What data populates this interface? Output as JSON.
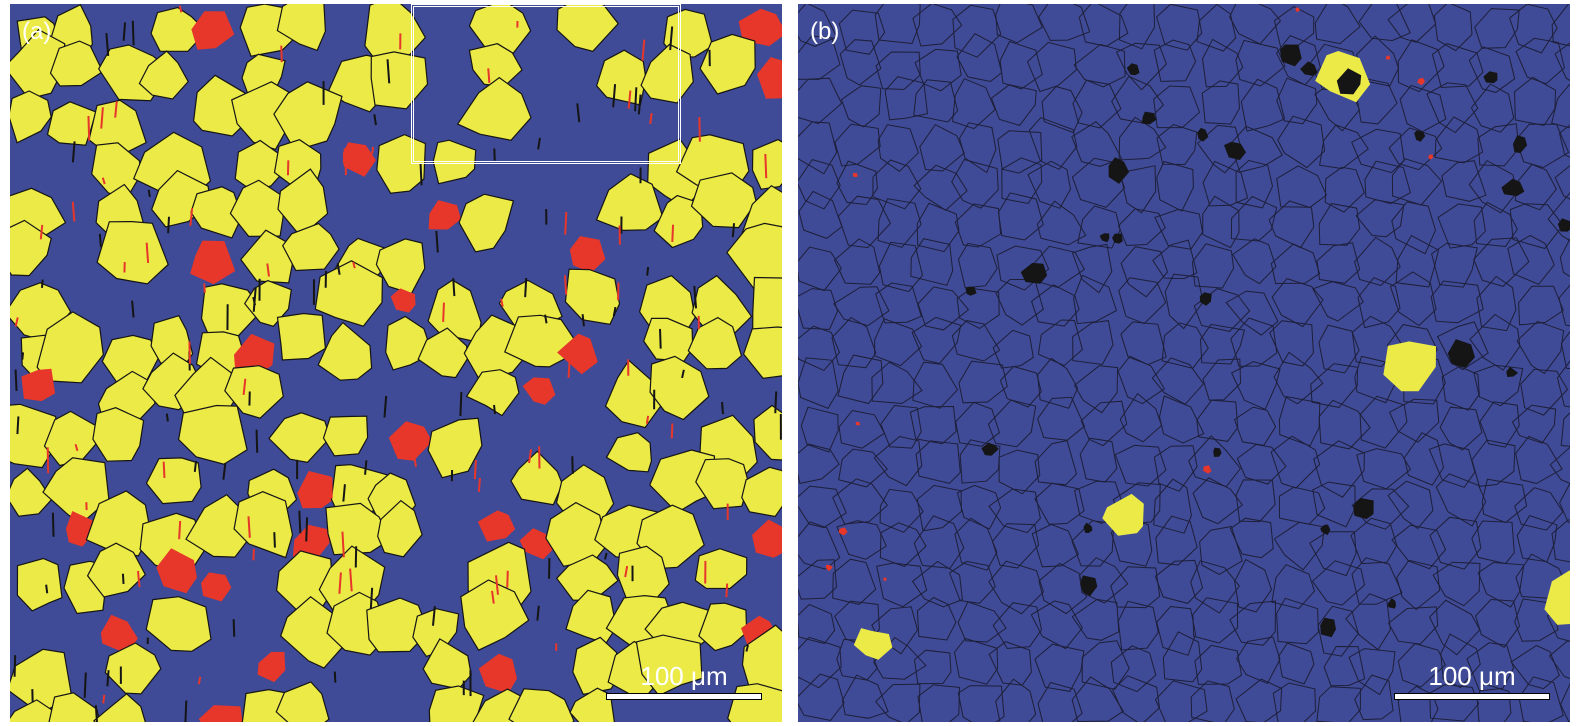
{
  "figure": {
    "panels": [
      {
        "id": "a",
        "label": "(a)",
        "scale_bar": "100 μm",
        "phase_colors": {
          "matrix": "#3f4b96",
          "phase_1": "#ecea47",
          "phase_2": "#e7362a",
          "boundaries": "#151515"
        }
      },
      {
        "id": "b",
        "label": "(b)",
        "scale_bar": "100 μm",
        "phase_colors": {
          "matrix": "#3f4b96",
          "phase_1": "#ecea47",
          "phase_2": "#e7362a",
          "boundaries": "#151515"
        }
      }
    ]
  }
}
